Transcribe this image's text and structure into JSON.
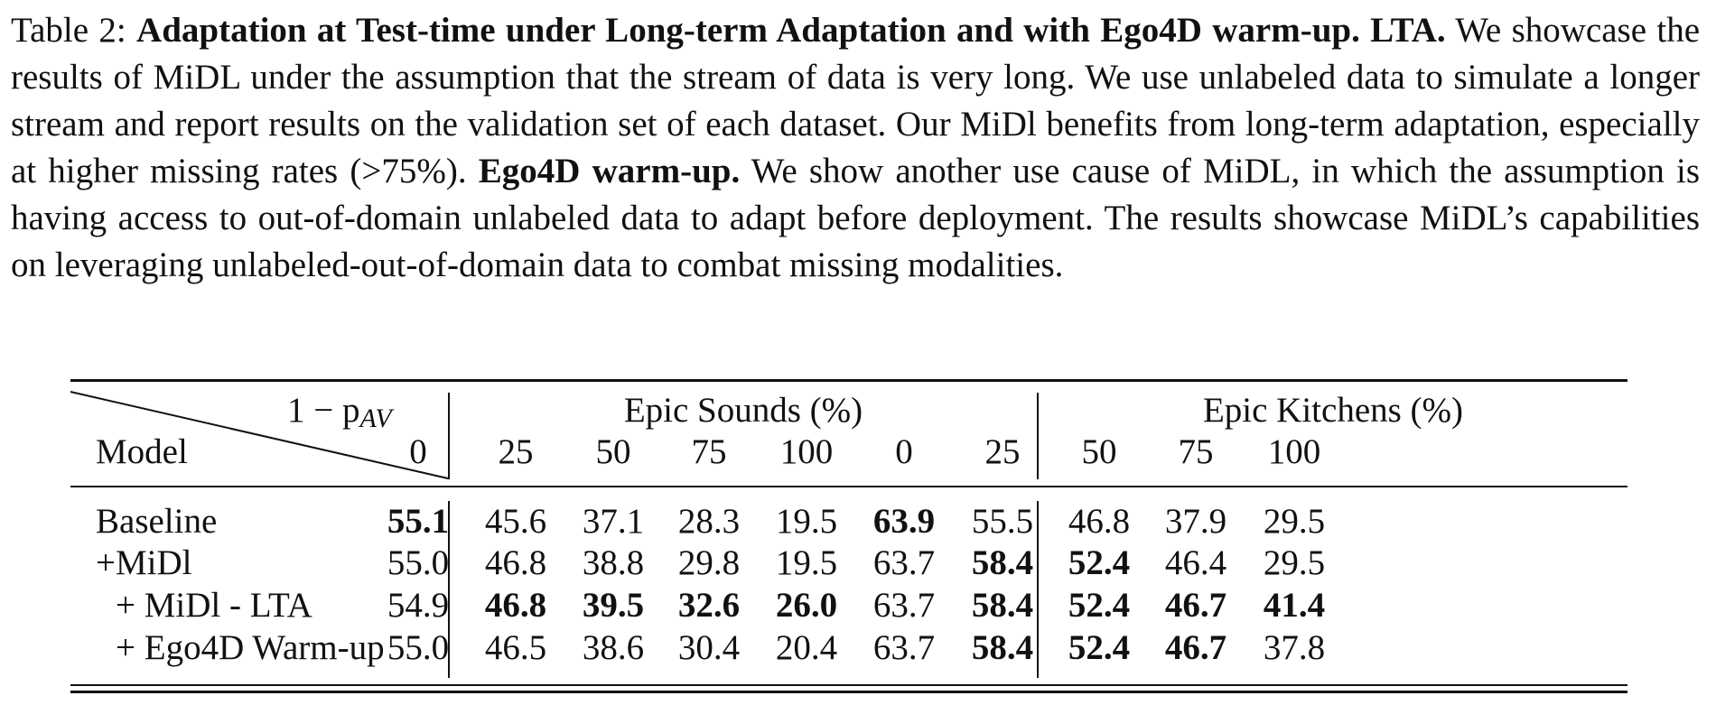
{
  "caption": {
    "label": "Table 2:",
    "title": "Adaptation at Test-time under Long-term Adaptation and with Ego4D warm-up.",
    "lta_head": "LTA.",
    "lta_text_1": "We showcase the results of MiDL under the assumption that the stream of data is very long.",
    "lta_text_2": "We use unlabeled data to simulate a longer stream and report results on the validation set of each",
    "lta_text_3": "dataset. Our MiDl benefits from long-term adaptation, especially at higher missing rates (>75%).",
    "ego_head": "Ego4D warm-up.",
    "ego_text_1": "We show another use cause of MiDL, in which the assumption is having access to",
    "ego_text_2": "out-of-domain unlabeled data to adapt before deployment. The results showcase MiDL’s capabilities",
    "ego_text_3": "on leveraging unlabeled-out-of-domain data to combat missing modalities."
  },
  "table": {
    "corner_top": "1 − p",
    "corner_sub": "AV",
    "corner_bottom": "Model",
    "group1": "Epic Sounds (%)",
    "group2": "Epic Kitchens (%)",
    "columns": [
      "0",
      "25",
      "50",
      "75",
      "100",
      "0",
      "25",
      "50",
      "75",
      "100"
    ],
    "rows": [
      {
        "model": "Baseline",
        "values": [
          "55.1",
          "45.6",
          "37.1",
          "28.3",
          "19.5",
          "63.9",
          "55.5",
          "46.8",
          "37.9",
          "29.5"
        ],
        "bold": [
          true,
          false,
          false,
          false,
          false,
          true,
          false,
          false,
          false,
          false
        ]
      },
      {
        "model": "+MiDl",
        "values": [
          "55.0",
          "46.8",
          "38.8",
          "29.8",
          "19.5",
          "63.7",
          "58.4",
          "52.4",
          "46.4",
          "29.5"
        ],
        "bold": [
          false,
          false,
          false,
          false,
          false,
          false,
          true,
          true,
          false,
          false
        ]
      },
      {
        "model": "+ MiDl - LTA",
        "values": [
          "54.9",
          "46.8",
          "39.5",
          "32.6",
          "26.0",
          "63.7",
          "58.4",
          "52.4",
          "46.7",
          "41.4"
        ],
        "bold": [
          false,
          true,
          true,
          true,
          true,
          false,
          true,
          true,
          true,
          true
        ]
      },
      {
        "model": "+ Ego4D Warm-up",
        "values": [
          "55.0",
          "46.5",
          "38.6",
          "30.4",
          "20.4",
          "63.7",
          "58.4",
          "52.4",
          "46.7",
          "37.8"
        ],
        "bold": [
          false,
          false,
          false,
          false,
          false,
          false,
          true,
          true,
          true,
          false
        ]
      }
    ]
  }
}
